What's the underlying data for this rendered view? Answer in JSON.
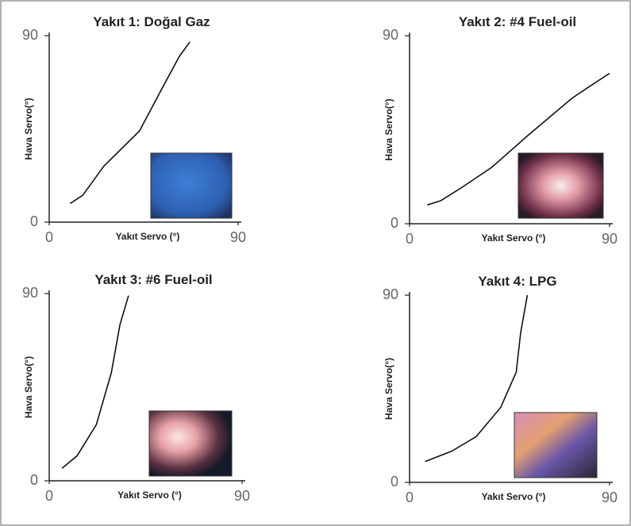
{
  "chart_data": [
    {
      "type": "line",
      "title": "Yakıt 1: Doğal Gaz",
      "xlabel": "Yakıt Servo (°)",
      "ylabel": "Hava Servo(°)",
      "x": [
        10,
        16,
        26,
        43,
        54,
        62,
        67
      ],
      "values": [
        9,
        13,
        27,
        44,
        65,
        80,
        87
      ],
      "color": "#111111",
      "xlim": [
        0,
        90
      ],
      "ylim": [
        0,
        90
      ],
      "xticks": [
        0,
        90
      ],
      "yticks": [
        0,
        90
      ]
    },
    {
      "type": "line",
      "title": "Yakıt 2: #4 Fuel-oil",
      "xlabel": "Yakıt Servo (°)",
      "ylabel": "Hava Servo(°)",
      "x": [
        8,
        14,
        23,
        37,
        53,
        73,
        80,
        90
      ],
      "values": [
        9,
        11,
        17,
        27,
        42,
        60,
        65,
        72
      ],
      "color": "#111111",
      "xlim": [
        0,
        90
      ],
      "ylim": [
        0,
        90
      ],
      "xticks": [
        0,
        90
      ],
      "yticks": [
        0,
        90
      ]
    },
    {
      "type": "line",
      "title": "Yakıt 3: #6 Fuel-oil",
      "xlabel": "Yakıt Servo (°)",
      "ylabel": "Hava Servo(°)",
      "x": [
        6,
        13,
        22,
        29,
        33,
        37
      ],
      "values": [
        6,
        12,
        27,
        52,
        75,
        89
      ],
      "color": "#111111",
      "xlim": [
        0,
        90
      ],
      "ylim": [
        0,
        90
      ],
      "xticks": [
        0,
        90
      ],
      "yticks": [
        0,
        90
      ]
    },
    {
      "type": "line",
      "title": "Yakıt 4: LPG",
      "xlabel": "Yakıt Servo (°)",
      "ylabel": "Hava Servo(°)",
      "x": [
        7,
        19,
        30,
        41,
        48,
        50,
        53
      ],
      "values": [
        10,
        15,
        22,
        36,
        53,
        72,
        90
      ],
      "color": "#111111",
      "xlim": [
        0,
        90
      ],
      "ylim": [
        0,
        90
      ],
      "xticks": [
        0,
        90
      ],
      "yticks": [
        0,
        90
      ]
    }
  ]
}
